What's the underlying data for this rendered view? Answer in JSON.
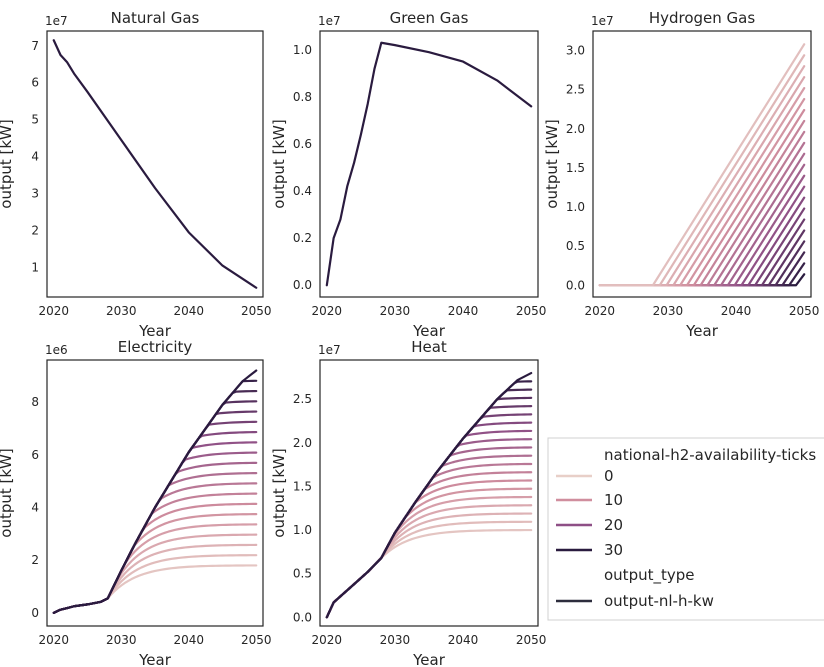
{
  "legend": {
    "hue_title": "national-h2-availability-ticks",
    "hue_entries": [
      {
        "label": "0",
        "color": "#e8cfc8"
      },
      {
        "label": "10",
        "color": "#d08e9e"
      },
      {
        "label": "20",
        "color": "#8e4f86"
      },
      {
        "label": "30",
        "color": "#2a1b3f"
      }
    ],
    "style_title": "output_type",
    "style_entry": {
      "label": "output-nl-h-kw",
      "color": "#2d2d3d"
    }
  },
  "colors": {
    "light": "#e8cfc8",
    "mid": "#d08e9e",
    "purple": "#8e4f86",
    "dark": "#2a1b3f"
  },
  "chart_data": [
    {
      "type": "line",
      "title": "Natural Gas",
      "xlabel": "Year",
      "ylabel": "output [kW]",
      "scale_label": "1e7",
      "xlim": [
        2019,
        2051
      ],
      "ylim": [
        0.2,
        7.4
      ],
      "xticks": [
        2020,
        2030,
        2040,
        2050
      ],
      "yticks": [
        1,
        2,
        3,
        4,
        5,
        6,
        7
      ],
      "series": [
        {
          "x": [
            2020,
            2021,
            2022,
            2023,
            2025,
            2030,
            2035,
            2040,
            2045,
            2050
          ],
          "y": [
            7.15,
            6.75,
            6.55,
            6.25,
            5.75,
            4.45,
            3.15,
            1.95,
            1.05,
            0.45
          ]
        }
      ]
    },
    {
      "type": "line",
      "title": "Green Gas",
      "xlabel": "Year",
      "ylabel": "output [kW]",
      "scale_label": "1e7",
      "xlim": [
        2019,
        2051
      ],
      "ylim": [
        -0.05,
        1.08
      ],
      "xticks": [
        2020,
        2030,
        2040,
        2050
      ],
      "yticks": [
        0.0,
        0.2,
        0.4,
        0.6,
        0.8,
        1.0
      ],
      "series": [
        {
          "x": [
            2020,
            2021,
            2022,
            2023,
            2024,
            2025,
            2026,
            2027,
            2028,
            2030,
            2035,
            2040,
            2045,
            2050
          ],
          "y": [
            0.0,
            0.2,
            0.28,
            0.42,
            0.52,
            0.64,
            0.77,
            0.92,
            1.03,
            1.02,
            0.99,
            0.95,
            0.87,
            0.76
          ]
        }
      ]
    },
    {
      "type": "line",
      "title": "Hydrogen Gas",
      "xlabel": "Year",
      "ylabel": "output [kW]",
      "scale_label": "1e7",
      "xlim": [
        2019,
        2051
      ],
      "ylim": [
        -0.15,
        3.25
      ],
      "xticks": [
        2020,
        2030,
        2040,
        2050
      ],
      "yticks": [
        0.0,
        0.5,
        1.0,
        1.5,
        2.0,
        2.5,
        3.0
      ],
      "family": {
        "kind": "ramp",
        "count": 22,
        "start_first": 2027.8,
        "start_step": 1.0,
        "end_x": 2050,
        "end_first": 3.08,
        "end_step": -0.14,
        "flat_from": 2020
      }
    },
    {
      "type": "line",
      "title": "Electricity",
      "xlabel": "Year",
      "ylabel": "output [kW]",
      "scale_label": "1e6",
      "xlim": [
        2019,
        2051
      ],
      "ylim": [
        -0.5,
        9.6
      ],
      "xticks": [
        2020,
        2030,
        2040,
        2050
      ],
      "yticks": [
        0,
        2,
        4,
        6,
        8
      ],
      "family": {
        "kind": "saturating",
        "count": 20,
        "base": {
          "x": [
            2020,
            2021,
            2022,
            2023,
            2025,
            2027,
            2028
          ],
          "y": [
            0.0,
            0.12,
            0.18,
            0.25,
            0.32,
            0.42,
            0.55
          ]
        },
        "envelope": {
          "x": [
            2028,
            2030,
            2032,
            2035,
            2040,
            2045,
            2048,
            2050
          ],
          "y": [
            0.55,
            1.6,
            2.6,
            4.0,
            6.1,
            7.9,
            8.8,
            9.2
          ]
        },
        "floor_end": 1.8,
        "ceil_end": 9.2
      }
    },
    {
      "type": "line",
      "title": "Heat",
      "xlabel": "Year",
      "ylabel": "output [kW]",
      "scale_label": "1e7",
      "xlim": [
        2019,
        2051
      ],
      "ylim": [
        -0.1,
        2.95
      ],
      "xticks": [
        2020,
        2030,
        2040,
        2050
      ],
      "yticks": [
        0.0,
        0.5,
        1.0,
        1.5,
        2.0,
        2.5
      ],
      "family": {
        "kind": "saturating",
        "count": 20,
        "base": {
          "x": [
            2020,
            2021,
            2022,
            2024,
            2026,
            2028
          ],
          "y": [
            0.0,
            0.17,
            0.24,
            0.38,
            0.52,
            0.68
          ]
        },
        "envelope": {
          "x": [
            2028,
            2030,
            2033,
            2036,
            2040,
            2045,
            2048,
            2050
          ],
          "y": [
            0.68,
            0.97,
            1.32,
            1.65,
            2.05,
            2.5,
            2.72,
            2.8
          ]
        },
        "floor_end": 1.0,
        "ceil_end": 2.8
      }
    }
  ]
}
